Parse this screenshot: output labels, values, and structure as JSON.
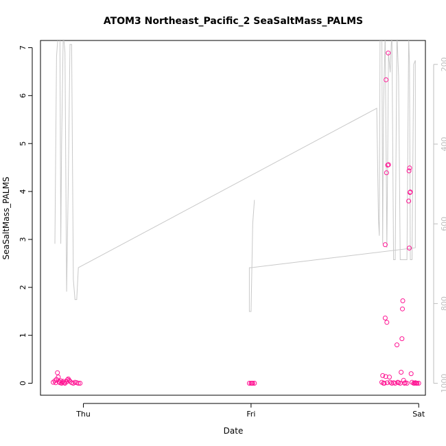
{
  "chart_data": {
    "type": "scatter",
    "title": "ATOM3 Northeast_Pacific_2 SeaSaltMass_PALMS",
    "xlabel": "Date",
    "ylabel": "SeaSaltMass_PALMS",
    "x_tick_labels": [
      "Thu",
      "Fri",
      "Sat"
    ],
    "x_tick_values": [
      0,
      1,
      2
    ],
    "xlim": [
      -0.17,
      2.04
    ],
    "ylim": [
      -0.25,
      7.15
    ],
    "y_ticks": [
      0,
      1,
      2,
      3,
      4,
      5,
      6,
      7
    ],
    "right_axis": {
      "label": "",
      "ticks": [
        200,
        400,
        600,
        800,
        1000
      ],
      "range": [
        1030,
        140
      ],
      "color": "#bdbdbd"
    },
    "grid": false,
    "series": [
      {
        "kind": "points",
        "color": "#ff1493",
        "points": [
          [
            -0.18,
            0.02
          ],
          [
            -0.17,
            0.05
          ],
          [
            -0.165,
            0.01
          ],
          [
            -0.16,
            0.08
          ],
          [
            -0.155,
            0.22
          ],
          [
            -0.15,
            0.13
          ],
          [
            -0.145,
            0.03
          ],
          [
            -0.14,
            0.01
          ],
          [
            -0.135,
            0.05
          ],
          [
            -0.13,
            0.0
          ],
          [
            -0.125,
            0.02
          ],
          [
            -0.12,
            0.04
          ],
          [
            -0.115,
            0.01
          ],
          [
            -0.11,
            0.0
          ],
          [
            -0.1,
            0.03
          ],
          [
            -0.095,
            0.07
          ],
          [
            -0.09,
            0.09
          ],
          [
            -0.085,
            0.06
          ],
          [
            -0.08,
            0.04
          ],
          [
            -0.07,
            0.01
          ],
          [
            -0.06,
            0.0
          ],
          [
            -0.05,
            0.02
          ],
          [
            -0.04,
            0.01
          ],
          [
            -0.03,
            0.0
          ],
          [
            -0.02,
            0.0
          ],
          [
            0.99,
            0.0
          ],
          [
            1.0,
            0.0
          ],
          [
            1.005,
            0.0
          ],
          [
            1.01,
            0.0
          ],
          [
            1.02,
            0.0
          ],
          [
            1.78,
            0.02
          ],
          [
            1.785,
            0.16
          ],
          [
            1.79,
            0.0
          ],
          [
            1.795,
            0.0
          ],
          [
            1.8,
            1.36
          ],
          [
            1.803,
            0.14
          ],
          [
            1.805,
            6.33
          ],
          [
            1.808,
            4.39
          ],
          [
            1.81,
            1.27
          ],
          [
            1.812,
            0.01
          ],
          [
            1.815,
            4.55
          ],
          [
            1.818,
            6.89
          ],
          [
            1.82,
            4.56
          ],
          [
            1.825,
            0.13
          ],
          [
            1.83,
            0.02
          ],
          [
            1.84,
            0.0
          ],
          [
            1.85,
            0.01
          ],
          [
            1.86,
            0.0
          ],
          [
            1.87,
            0.8
          ],
          [
            1.875,
            0.02
          ],
          [
            1.88,
            0.01
          ],
          [
            1.89,
            0.0
          ],
          [
            1.895,
            0.23
          ],
          [
            1.9,
            0.93
          ],
          [
            1.903,
            1.55
          ],
          [
            1.905,
            1.72
          ],
          [
            1.91,
            0.06
          ],
          [
            1.915,
            0.0
          ],
          [
            1.92,
            0.01
          ],
          [
            1.93,
            0.0
          ],
          [
            1.94,
            3.8
          ],
          [
            1.942,
            4.43
          ],
          [
            1.944,
            2.82
          ],
          [
            1.946,
            4.49
          ],
          [
            1.948,
            3.98
          ],
          [
            1.95,
            3.99
          ],
          [
            1.955,
            0.2
          ],
          [
            1.96,
            0.02
          ],
          [
            1.97,
            0.0
          ],
          [
            1.975,
            0.0
          ],
          [
            1.98,
            0.01
          ],
          [
            1.985,
            0.0
          ],
          [
            1.99,
            0.0
          ],
          [
            2.0,
            0.0
          ],
          [
            1.8,
            2.89
          ]
        ]
      },
      {
        "kind": "line",
        "axis": "right",
        "color": "#c8c8c8",
        "points": [
          [
            -0.17,
            650
          ],
          [
            -0.16,
            180
          ],
          [
            -0.15,
            120
          ],
          [
            -0.14,
            130
          ],
          [
            -0.135,
            650
          ],
          [
            -0.13,
            400
          ],
          [
            -0.12,
            120
          ],
          [
            -0.11,
            170
          ],
          [
            -0.1,
            770
          ],
          [
            -0.09,
            500
          ],
          [
            -0.08,
            150
          ],
          [
            -0.07,
            150
          ],
          [
            -0.06,
            740
          ],
          [
            -0.05,
            790
          ],
          [
            -0.04,
            790
          ],
          [
            -0.03,
            710
          ],
          [
            1.75,
            310
          ],
          [
            1.76,
            590
          ],
          [
            1.765,
            630
          ],
          [
            1.77,
            80
          ],
          [
            1.78,
            110
          ],
          [
            1.785,
            650
          ],
          [
            1.79,
            310
          ],
          [
            1.8,
            120
          ],
          [
            1.81,
            660
          ],
          [
            1.815,
            440
          ],
          [
            1.82,
            170
          ],
          [
            1.83,
            220
          ],
          [
            1.84,
            110
          ],
          [
            1.85,
            690
          ],
          [
            1.86,
            690
          ],
          [
            1.87,
            120
          ],
          [
            1.88,
            230
          ],
          [
            1.89,
            690
          ],
          [
            1.9,
            690
          ],
          [
            1.91,
            690
          ],
          [
            1.93,
            690
          ],
          [
            1.94,
            130
          ],
          [
            1.945,
            200
          ],
          [
            1.95,
            690
          ],
          [
            1.96,
            690
          ],
          [
            1.97,
            200
          ],
          [
            1.98,
            190
          ],
          [
            1.98,
            660
          ],
          [
            1.98,
            660
          ],
          [
            1.0,
            710
          ],
          [
            0.99,
            710
          ],
          [
            0.99,
            820
          ],
          [
            1.0,
            820
          ],
          [
            1.01,
            600
          ],
          [
            1.02,
            540
          ]
        ]
      }
    ]
  }
}
